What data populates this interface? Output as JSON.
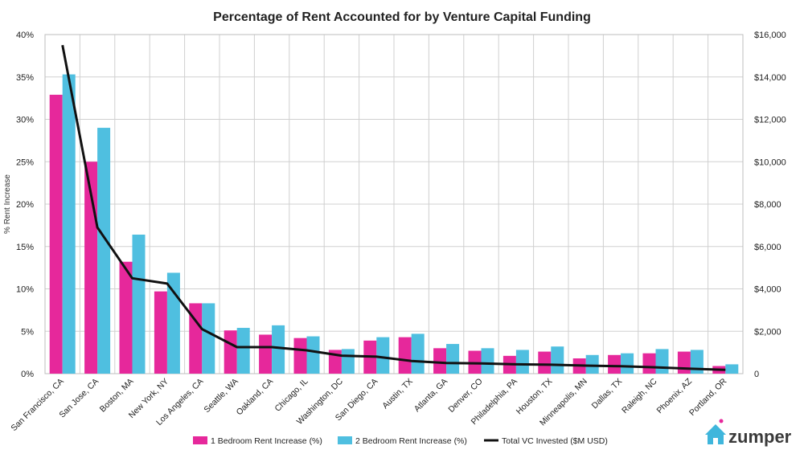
{
  "chart_data": {
    "type": "bar",
    "title": "Percentage of Rent Accounted for by Venture Capital Funding",
    "ylabel": "% Rent Increase",
    "xlabel": "",
    "ylim": [
      0,
      40
    ],
    "y2lim": [
      0,
      16000
    ],
    "yticks": [
      "0%",
      "5%",
      "10%",
      "15%",
      "20%",
      "25%",
      "30%",
      "35%",
      "40%"
    ],
    "y2ticks": [
      "0",
      "$2,000",
      "$4,000",
      "$6,000",
      "$8,000",
      "$10,000",
      "$12,000",
      "$14,000",
      "$16,000"
    ],
    "grid": true,
    "legend_position": "bottom",
    "categories": [
      "San Francisco, CA",
      "San Jose, CA",
      "Boston, MA",
      "New York, NY",
      "Los Angeles, CA",
      "Seattle, WA",
      "Oakland, CA",
      "Chicago, IL",
      "Washington, DC",
      "San Diego, CA",
      "Austin, TX",
      "Atlanta, GA",
      "Denver, CO",
      "Philadelphia, PA",
      "Houston, TX",
      "Minneapolis, MN",
      "Dallas, TX",
      "Raleigh, NC",
      "Phoenix, AZ",
      "Portland, OR"
    ],
    "series": [
      {
        "name": "1 Bedroom Rent Increase (%)",
        "type": "bar",
        "axis": "left",
        "color": "#e6289b",
        "values": [
          32.9,
          25.0,
          13.2,
          9.7,
          8.3,
          5.1,
          4.6,
          4.2,
          2.8,
          3.9,
          4.3,
          3.0,
          2.7,
          2.1,
          2.6,
          1.8,
          2.2,
          2.4,
          2.6,
          0.9
        ]
      },
      {
        "name": "2 Bedroom Rent Increase (%)",
        "type": "bar",
        "axis": "right-pct",
        "color": "#4fbfe0",
        "values": [
          35.3,
          29.0,
          16.4,
          11.9,
          8.3,
          5.4,
          5.7,
          4.4,
          2.9,
          4.3,
          4.7,
          3.5,
          3.0,
          2.8,
          3.2,
          2.2,
          2.4,
          2.9,
          2.8,
          1.1
        ]
      },
      {
        "name": "Total VC Invested ($M USD)",
        "type": "line",
        "axis": "right",
        "color": "#111111",
        "values": [
          15500,
          6900,
          4500,
          4250,
          2100,
          1250,
          1250,
          1100,
          850,
          800,
          600,
          500,
          480,
          440,
          420,
          380,
          350,
          300,
          230,
          180
        ]
      }
    ]
  },
  "branding": {
    "logo_text": "zumper"
  }
}
